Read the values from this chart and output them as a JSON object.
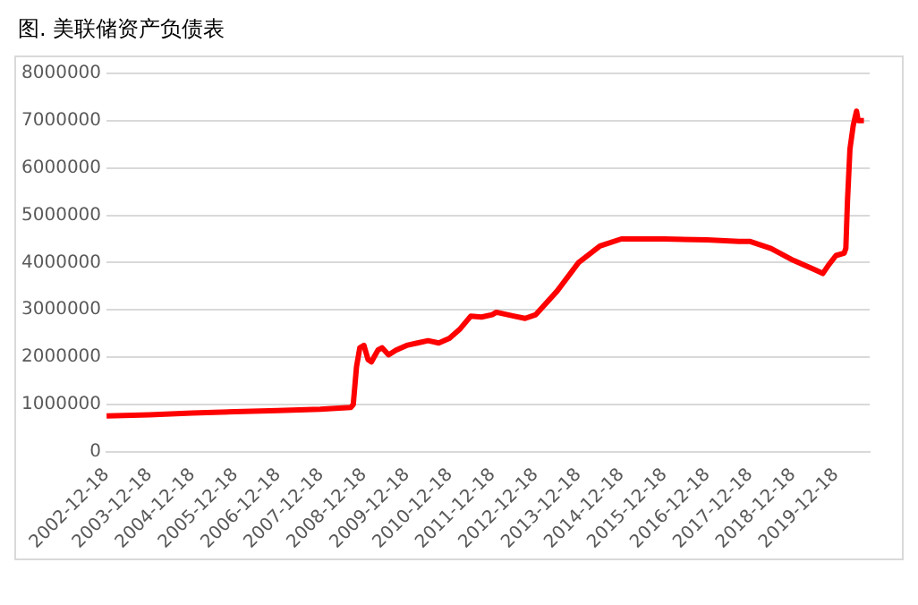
{
  "chart_data": {
    "type": "line",
    "title": "图. 美联储资产负债表",
    "x": [
      "2002-12-18",
      "2003-12-17",
      "2004-12-15",
      "2005-12-14",
      "2006-12-13",
      "2007-12-12",
      "2008-08-27",
      "2008-09-17",
      "2008-10-15",
      "2008-11-12",
      "2008-12-17",
      "2009-01-21",
      "2009-02-18",
      "2009-04-15",
      "2009-05-20",
      "2009-07-15",
      "2009-09-16",
      "2009-12-16",
      "2010-03-17",
      "2010-06-16",
      "2010-09-15",
      "2010-12-15",
      "2011-03-16",
      "2011-06-15",
      "2011-09-14",
      "2011-12-14",
      "2012-01-18",
      "2012-06-13",
      "2012-09-19",
      "2012-12-19",
      "2013-06-19",
      "2013-12-18",
      "2014-06-18",
      "2014-12-17",
      "2015-12-16",
      "2016-12-14",
      "2017-09-13",
      "2017-12-13",
      "2018-06-13",
      "2018-12-19",
      "2019-06-19",
      "2019-08-28",
      "2019-10-16",
      "2019-12-18",
      "2020-02-26",
      "2020-03-11",
      "2020-03-25",
      "2020-04-15",
      "2020-05-13",
      "2020-06-10",
      "2020-06-24",
      "2020-07-15",
      "2020-08-12"
    ],
    "series": [
      {
        "color": "#ff0000",
        "values": [
          760000,
          780000,
          820000,
          850000,
          870000,
          900000,
          940000,
          1000000,
          1800000,
          2200000,
          2250000,
          1950000,
          1900000,
          2150000,
          2200000,
          2050000,
          2150000,
          2250000,
          2300000,
          2350000,
          2300000,
          2400000,
          2600000,
          2870000,
          2850000,
          2900000,
          2950000,
          2870000,
          2820000,
          2900000,
          3400000,
          4000000,
          4350000,
          4500000,
          4500000,
          4480000,
          4450000,
          4450000,
          4300000,
          4050000,
          3850000,
          3770000,
          3950000,
          4150000,
          4200000,
          4300000,
          5300000,
          6400000,
          6900000,
          7200000,
          7000000,
          7000000,
          7000000
        ]
      }
    ],
    "ylim": [
      0,
      8000000
    ],
    "yticks": [
      0,
      1000000,
      2000000,
      3000000,
      4000000,
      5000000,
      6000000,
      7000000,
      8000000
    ],
    "xlim": [
      "2002-12-18",
      "2020-09-30"
    ],
    "xticks": [
      "2002-12-18",
      "2003-12-18",
      "2004-12-18",
      "2005-12-18",
      "2006-12-18",
      "2007-12-18",
      "2008-12-18",
      "2009-12-18",
      "2010-12-18",
      "2011-12-18",
      "2012-12-18",
      "2013-12-18",
      "2014-12-18",
      "2015-12-18",
      "2016-12-18",
      "2017-12-18",
      "2018-12-18",
      "2019-12-18"
    ],
    "grid": "y",
    "legend": false,
    "marker": "none",
    "line_style": "solid"
  }
}
